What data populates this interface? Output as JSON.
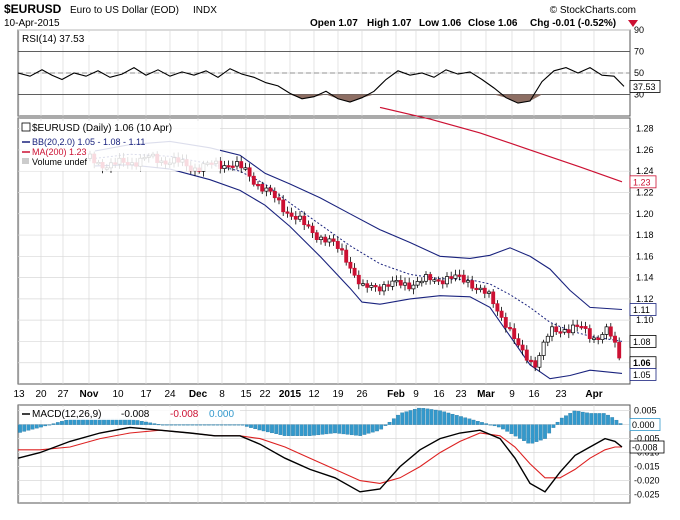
{
  "header": {
    "symbol": "$EURUSD",
    "name": "Euro to US Dollar (EOD)",
    "exchange": "INDX",
    "date": "10-Apr-2015",
    "watermark": "© StockCharts.com",
    "open": "Open 1.07",
    "high": "High 1.07",
    "low": "Low 1.06",
    "close": "Close 1.06",
    "chg": "Chg -0.01 (-0.52%)"
  },
  "colors": {
    "up": "#ffffff",
    "down": "#cc1133",
    "bb": "#1a237e",
    "ma": "#cc1133",
    "macd": "#000000",
    "signal": "#dd2222",
    "hist": "#3399cc",
    "rsi_fill": "#8d6e63",
    "grid": "#d8d8d8"
  },
  "chart_data": [
    {
      "type": "line",
      "title": "RSI(14) 37.53",
      "ylim": [
        10,
        90
      ],
      "yticks": [
        "90",
        "70",
        "50",
        "30"
      ],
      "last_label": "37.53",
      "reference_lines": [
        70,
        50,
        30
      ]
    },
    {
      "type": "candlestick",
      "title": "$EURUSD (Daily) 1.06 (10 Apr)",
      "legend": [
        "BB(20,2.0) 1.05 - 1.08 - 1.11",
        "MA(200) 1.23",
        "Volume undef"
      ],
      "ylim": [
        1.04,
        1.29
      ],
      "yticks": [
        "1.28",
        "1.26",
        "1.24",
        "1.22",
        "1.20",
        "1.18",
        "1.16",
        "1.14",
        "1.12",
        "1.10",
        "1.08",
        "1.06"
      ],
      "price_labels": {
        "ma": "1.23",
        "bb_upper": "1.11",
        "bb_mid": "1.08",
        "close": "1.06",
        "bb_lower": "1.05"
      },
      "x_labels": [
        "13",
        "20",
        "27",
        "Nov",
        "10",
        "17",
        "24",
        "Dec",
        "8",
        "15",
        "22",
        "2015",
        "12",
        "19",
        "26",
        "Feb",
        "9",
        "16",
        "23",
        "Mar",
        "9",
        "16",
        "23",
        "Apr"
      ],
      "month_labels": [
        "Nov",
        "Dec",
        "2015",
        "Feb",
        "Mar",
        "Apr"
      ]
    },
    {
      "type": "line",
      "title": "MACD(12,26,9) -0.008, -0.008, 0.000",
      "legend": [
        "MACD(12,26,9)",
        "-0.008",
        "-0.008",
        "0.000"
      ],
      "ylim": [
        -0.028,
        0.007
      ],
      "yticks": [
        "0.005",
        "0.000",
        "-0.005",
        "-0.010",
        "-0.015",
        "-0.020",
        "-0.025"
      ],
      "price_labels": {
        "hist": "0.000",
        "macd": "-0.008"
      }
    }
  ]
}
